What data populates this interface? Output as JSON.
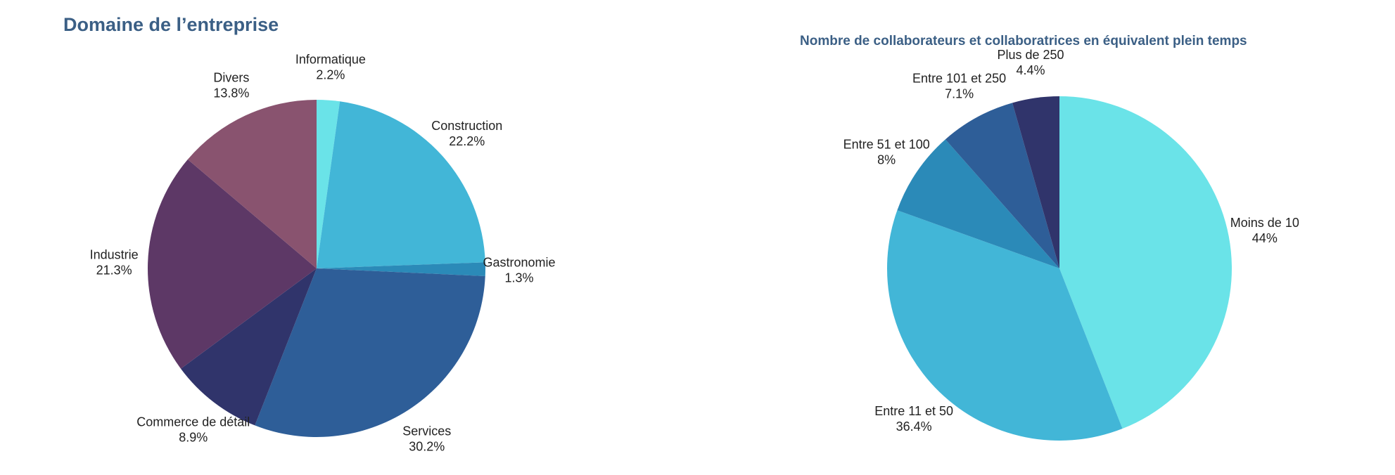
{
  "chart_data": [
    {
      "type": "pie",
      "title": "Domaine de l’entreprise",
      "start_angle_deg": 0,
      "direction": "clockwise",
      "slices": [
        {
          "label": "Informatique",
          "value": 2.2,
          "display": "2.2%",
          "color": "#6ae3e8"
        },
        {
          "label": "Construction",
          "value": 22.2,
          "display": "22.2%",
          "color": "#42b6d7"
        },
        {
          "label": "Gastronomie",
          "value": 1.3,
          "display": "1.3%",
          "color": "#2b8ab8"
        },
        {
          "label": "Services",
          "value": 30.2,
          "display": "30.2%",
          "color": "#2e5e98"
        },
        {
          "label": "Commerce de détail",
          "value": 8.9,
          "display": "8.9%",
          "color": "#30346b"
        },
        {
          "label": "Industrie",
          "value": 21.3,
          "display": "21.3%",
          "color": "#5d3866"
        },
        {
          "label": "Divers",
          "value": 13.8,
          "display": "13.8%",
          "color": "#89536f"
        }
      ]
    },
    {
      "type": "pie",
      "title": "Nombre de collaborateurs et collaboratrices en équivalent plein temps",
      "start_angle_deg": 0,
      "direction": "clockwise",
      "slices": [
        {
          "label": "Moins de 10",
          "value": 44,
          "display": "44%",
          "color": "#6ae3e8"
        },
        {
          "label": "Entre 11 et 50",
          "value": 36.4,
          "display": "36.4%",
          "color": "#42b6d7"
        },
        {
          "label": "Entre 51 et 100",
          "value": 8,
          "display": "8%",
          "color": "#2b8ab8"
        },
        {
          "label": "Entre 101 et 250",
          "value": 7.1,
          "display": "7.1%",
          "color": "#2e5e98"
        },
        {
          "label": "Plus de 250",
          "value": 4.4,
          "display": "4.4%",
          "color": "#30346b"
        }
      ]
    }
  ]
}
